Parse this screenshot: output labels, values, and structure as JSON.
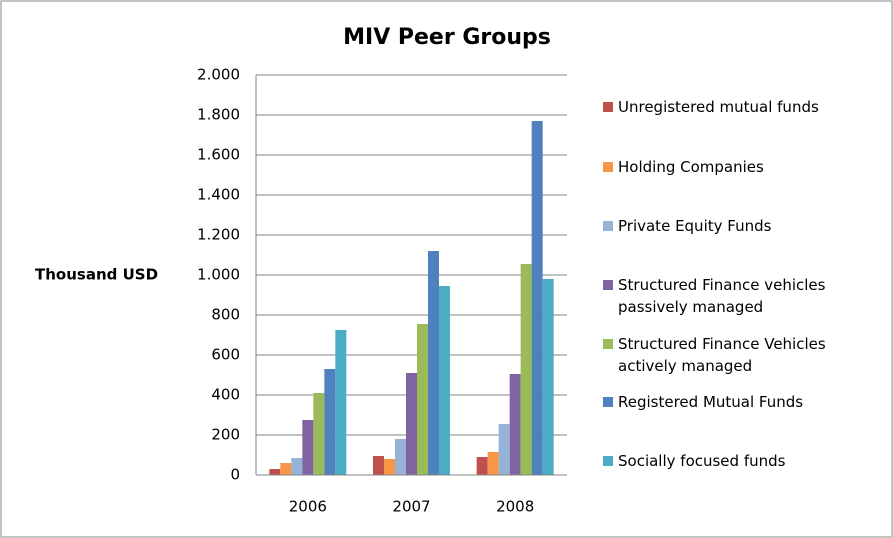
{
  "chart_data": {
    "type": "bar",
    "title": "MIV Peer Groups",
    "y_label": "Thousand USD",
    "categories": [
      "2006",
      "2007",
      "2008"
    ],
    "series": [
      {
        "name": "Unregistered mutual funds",
        "color": "#c0504d",
        "values": [
          30,
          95,
          90
        ]
      },
      {
        "name": "Holding Companies",
        "color": "#f79646",
        "values": [
          60,
          80,
          115
        ]
      },
      {
        "name": "Private Equity Funds",
        "color": "#95b3d7",
        "values": [
          85,
          180,
          255
        ]
      },
      {
        "name": "Structured Finance vehicles passively managed",
        "color": "#8064a2",
        "values": [
          275,
          510,
          505
        ]
      },
      {
        "name": "Structured Finance Vehicles actively managed",
        "color": "#9bbb59",
        "values": [
          410,
          755,
          1055
        ]
      },
      {
        "name": "Registered Mutual Funds",
        "color": "#4f81bd",
        "values": [
          530,
          1120,
          1770
        ]
      },
      {
        "name": "Socially focused funds",
        "color": "#4bacc6",
        "values": [
          725,
          945,
          980
        ]
      }
    ],
    "ylim": [
      0,
      2000
    ],
    "yticks": [
      0,
      200,
      400,
      600,
      800,
      {
        "value": 1000,
        "label": "1.000"
      },
      {
        "value": 1200,
        "label": "1.200"
      },
      {
        "value": 1400,
        "label": "1.400"
      },
      {
        "value": 1600,
        "label": "1.600"
      },
      {
        "value": 1800,
        "label": "1.800"
      },
      {
        "value": 2000,
        "label": "2.000"
      }
    ],
    "grid": true,
    "legend": "right"
  }
}
